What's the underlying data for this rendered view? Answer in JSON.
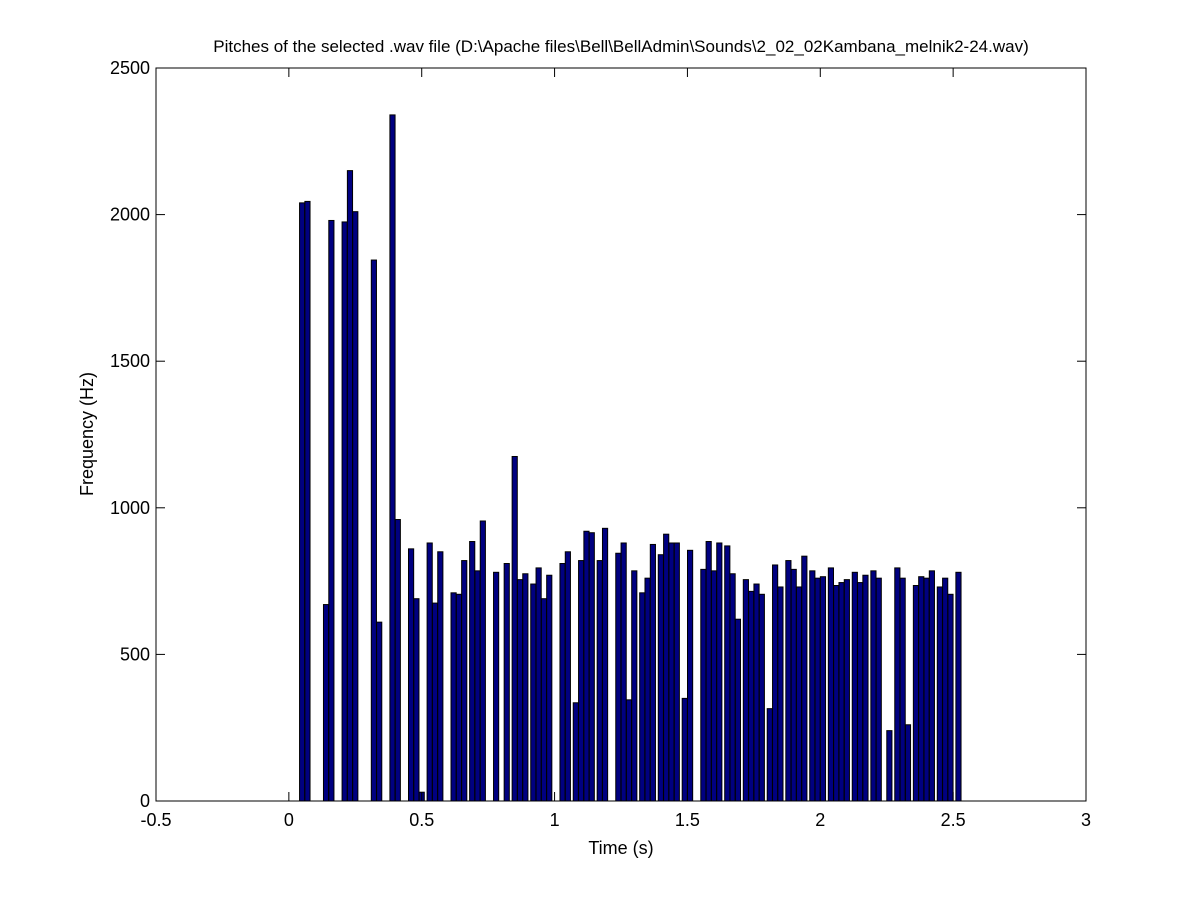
{
  "chart_data": {
    "type": "bar",
    "title": "Pitches of the selected .wav file (D:\\Apache files\\Bell\\BellAdmin\\Sounds\\2_02_02Kambana_melnik2-24.wav)",
    "xlabel": "Time (s)",
    "ylabel": "Frequency (Hz)",
    "xlim": [
      -0.5,
      3
    ],
    "ylim": [
      0,
      2500
    ],
    "xticks": [
      -0.5,
      0,
      0.5,
      1,
      1.5,
      2,
      2.5,
      3
    ],
    "xtick_labels": [
      "-0.5",
      "0",
      "0.5",
      "1",
      "1.5",
      "2",
      "2.5",
      "3"
    ],
    "yticks": [
      0,
      500,
      1000,
      1500,
      2000,
      2500
    ],
    "ytick_labels": [
      "0",
      "500",
      "1000",
      "1500",
      "2000",
      "2500"
    ],
    "grid": false,
    "bar_color": "#000080",
    "edge_color": "#000000",
    "x": [
      0.05,
      0.07,
      0.09,
      0.12,
      0.14,
      0.16,
      0.18,
      0.21,
      0.23,
      0.25,
      0.28,
      0.3,
      0.32,
      0.34,
      0.37,
      0.39,
      0.41,
      0.44,
      0.46,
      0.48,
      0.5,
      0.53,
      0.55,
      0.57,
      0.6,
      0.62,
      0.64,
      0.66,
      0.69,
      0.71,
      0.73,
      0.76,
      0.78,
      0.8,
      0.82,
      0.85,
      0.87,
      0.89,
      0.92,
      0.94,
      0.96,
      0.98,
      1.01,
      1.03,
      1.05,
      1.08,
      1.1,
      1.12,
      1.14,
      1.17,
      1.19,
      1.21,
      1.24,
      1.26,
      1.28,
      1.3,
      1.33,
      1.35,
      1.37,
      1.4,
      1.42,
      1.44,
      1.46,
      1.49,
      1.51,
      1.53,
      1.56,
      1.58,
      1.6,
      1.62,
      1.65,
      1.67,
      1.69,
      1.72,
      1.74,
      1.76,
      1.78,
      1.81,
      1.83,
      1.85,
      1.88,
      1.9,
      1.92,
      1.94,
      1.97,
      1.99,
      2.01,
      2.04,
      2.06,
      2.08,
      2.1,
      2.13,
      2.15,
      2.17,
      2.2,
      2.22,
      2.24,
      2.26,
      2.29,
      2.31,
      2.33,
      2.36,
      2.38,
      2.4,
      2.42,
      2.45,
      2.47,
      2.49,
      2.52
    ],
    "values": [
      2040,
      2045,
      0,
      0,
      670,
      1980,
      0,
      1975,
      2150,
      2010,
      0,
      0,
      1845,
      610,
      0,
      2340,
      960,
      0,
      860,
      690,
      30,
      880,
      675,
      850,
      0,
      710,
      705,
      820,
      885,
      785,
      955,
      0,
      780,
      0,
      810,
      1175,
      755,
      775,
      740,
      795,
      690,
      770,
      0,
      810,
      850,
      335,
      820,
      920,
      915,
      820,
      930,
      0,
      845,
      880,
      345,
      785,
      710,
      760,
      875,
      840,
      910,
      880,
      880,
      350,
      855,
      0,
      790,
      885,
      785,
      880,
      870,
      775,
      620,
      755,
      715,
      740,
      705,
      315,
      805,
      730,
      820,
      790,
      730,
      835,
      785,
      760,
      765,
      795,
      735,
      745,
      755,
      780,
      745,
      770,
      785,
      760,
      0,
      240,
      795,
      760,
      260,
      735,
      765,
      760,
      785,
      730,
      760,
      705,
      780
    ]
  }
}
